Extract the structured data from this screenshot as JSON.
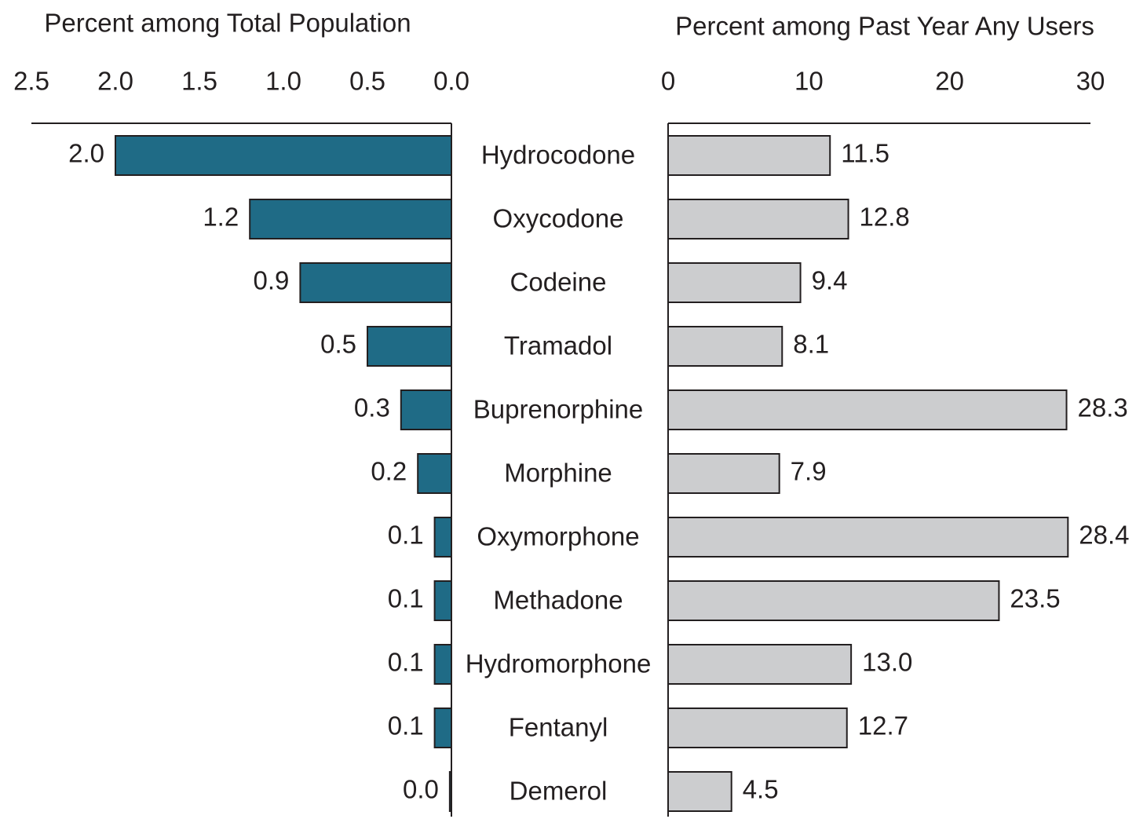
{
  "chart_data": [
    {
      "type": "bar",
      "orientation": "horizontal",
      "xlabel": "Percent among Total Population",
      "categories": [
        "Hydrocodone",
        "Oxycodone",
        "Codeine",
        "Tramadol",
        "Buprenorphine",
        "Morphine",
        "Oxymorphone",
        "Methadone",
        "Hydromorphone",
        "Fentanyl",
        "Demerol"
      ],
      "values": [
        2.0,
        1.2,
        0.9,
        0.5,
        0.3,
        0.2,
        0.1,
        0.1,
        0.1,
        0.1,
        0.01
      ],
      "value_labels": [
        "2.0",
        "1.2",
        "0.9",
        "0.5",
        "0.3",
        "0.2",
        "0.1",
        "0.1",
        "0.1",
        "0.1",
        "0.0"
      ],
      "color": "#1f6b86",
      "xlim": [
        2.5,
        0
      ],
      "reversed": true,
      "xticks": [
        {
          "value": 2.5,
          "label": "2.5"
        },
        {
          "value": 2,
          "label": "2.0"
        },
        {
          "value": 1.5,
          "label": "1.5"
        },
        {
          "value": 1,
          "label": "1.0"
        },
        {
          "value": 0.5,
          "label": "0.5"
        },
        {
          "value": 0,
          "label": "0.0"
        }
      ]
    },
    {
      "type": "bar",
      "orientation": "horizontal",
      "xlabel": "Percent among Past Year Any Users",
      "values": [
        11.5,
        12.8,
        9.4,
        8.1,
        28.3,
        7.9,
        28.4,
        23.5,
        13.0,
        12.7,
        4.5
      ],
      "value_labels": [
        "11.5",
        "12.8",
        "9.4",
        "8.1",
        "28.3",
        "7.9",
        "28.4",
        "23.5",
        "13.0",
        "12.7",
        "4.5"
      ],
      "color": "#cccdcf",
      "xlim": [
        0,
        30
      ],
      "xticks": [
        0,
        10,
        20,
        30
      ]
    }
  ]
}
